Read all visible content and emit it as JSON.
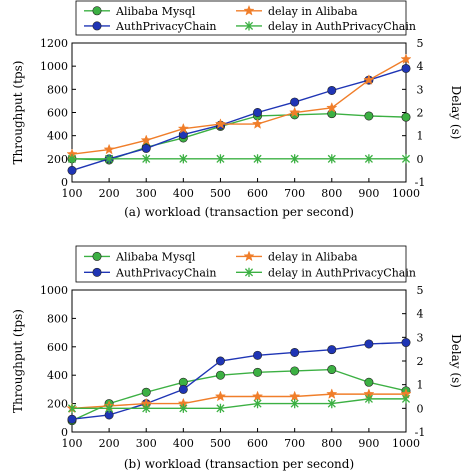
{
  "chart_data": [
    {
      "type": "line",
      "caption": "(a) workload (transaction per second)",
      "xlabel": "",
      "ylabel": "Throughput (tps)",
      "y2label": "Delay (s)",
      "x": [
        100,
        200,
        300,
        400,
        500,
        600,
        700,
        800,
        900,
        1000
      ],
      "xlim": [
        100,
        1000
      ],
      "ylim": [
        0,
        1200
      ],
      "y2lim": [
        -1,
        5
      ],
      "yticks": [
        0,
        200,
        400,
        600,
        800,
        1000,
        1200
      ],
      "y2ticks": [
        -1,
        0,
        1,
        2,
        3,
        4,
        5
      ],
      "legend_position": "top",
      "series": [
        {
          "name": "Alibaba Mysql",
          "axis": "left",
          "color": "#3cb043",
          "marker": "circle",
          "values": [
            200,
            190,
            300,
            380,
            480,
            570,
            580,
            590,
            570,
            560
          ]
        },
        {
          "name": "AuthPrivacyChain",
          "axis": "left",
          "color": "#1f35b5",
          "marker": "circle",
          "values": [
            100,
            200,
            290,
            410,
            490,
            600,
            690,
            790,
            880,
            980
          ]
        },
        {
          "name": "delay in Alibaba",
          "axis": "right",
          "color": "#f07e2a",
          "marker": "star",
          "values": [
            0.2,
            0.4,
            0.8,
            1.3,
            1.5,
            1.5,
            2.0,
            2.2,
            3.4,
            4.3
          ]
        },
        {
          "name": "delay in AuthPrivacyChain",
          "axis": "right",
          "color": "#3cb043",
          "marker": "x",
          "values": [
            0,
            0,
            0,
            0,
            0,
            0,
            0,
            0,
            0,
            0
          ]
        }
      ]
    },
    {
      "type": "line",
      "caption": "(b) workload (transaction per second)",
      "xlabel": "",
      "ylabel": "Throughput (tps)",
      "y2label": "Delay (s)",
      "x": [
        100,
        200,
        300,
        400,
        500,
        600,
        700,
        800,
        900,
        1000
      ],
      "xlim": [
        100,
        1000
      ],
      "ylim": [
        0,
        1000
      ],
      "y2lim": [
        -1,
        5
      ],
      "yticks": [
        0,
        200,
        400,
        600,
        800,
        1000
      ],
      "y2ticks": [
        -1,
        0,
        1,
        2,
        3,
        4,
        5
      ],
      "legend_position": "top",
      "series": [
        {
          "name": "Alibaba Mysql",
          "axis": "left",
          "color": "#3cb043",
          "marker": "circle",
          "values": [
            80,
            200,
            280,
            350,
            400,
            420,
            430,
            440,
            350,
            290
          ]
        },
        {
          "name": "AuthPrivacyChain",
          "axis": "left",
          "color": "#1f35b5",
          "marker": "circle",
          "values": [
            90,
            120,
            200,
            300,
            500,
            540,
            560,
            580,
            620,
            630
          ]
        },
        {
          "name": "delay in Alibaba",
          "axis": "right",
          "color": "#f07e2a",
          "marker": "star",
          "values": [
            0,
            0.1,
            0.2,
            0.2,
            0.5,
            0.5,
            0.5,
            0.6,
            0.6,
            0.6
          ]
        },
        {
          "name": "delay in AuthPrivacyChain",
          "axis": "right",
          "color": "#3cb043",
          "marker": "x",
          "values": [
            0,
            0,
            0,
            0,
            0,
            0.2,
            0.2,
            0.2,
            0.4,
            0.4
          ]
        }
      ]
    }
  ]
}
